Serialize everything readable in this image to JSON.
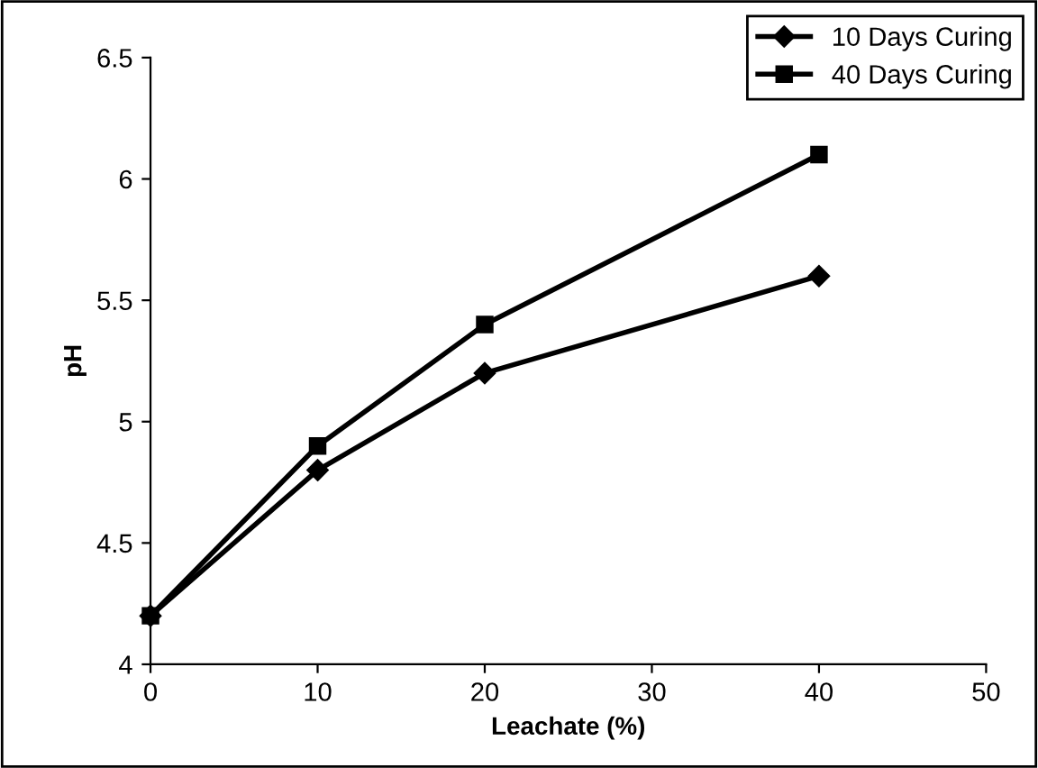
{
  "chart_data": {
    "type": "line",
    "xlabel": "Leachate (%)",
    "ylabel": "pH",
    "xlim": [
      0,
      50
    ],
    "xticks": [
      0,
      10,
      20,
      30,
      40,
      50
    ],
    "ylim": [
      4,
      6.5
    ],
    "yticks": [
      4,
      4.5,
      5,
      5.5,
      6,
      6.5
    ],
    "grid": false,
    "legend": "top right",
    "line_style": "solid",
    "series": [
      {
        "name": "10 Days Curing",
        "color": "#000000",
        "marker": "diamond",
        "x": [
          0,
          10,
          20,
          40
        ],
        "values": [
          4.2,
          4.8,
          5.2,
          5.6
        ]
      },
      {
        "name": "40 Days Curing",
        "color": "#000000",
        "marker": "square",
        "x": [
          0,
          10,
          20,
          40
        ],
        "values": [
          4.2,
          4.9,
          5.4,
          6.1
        ]
      }
    ]
  }
}
